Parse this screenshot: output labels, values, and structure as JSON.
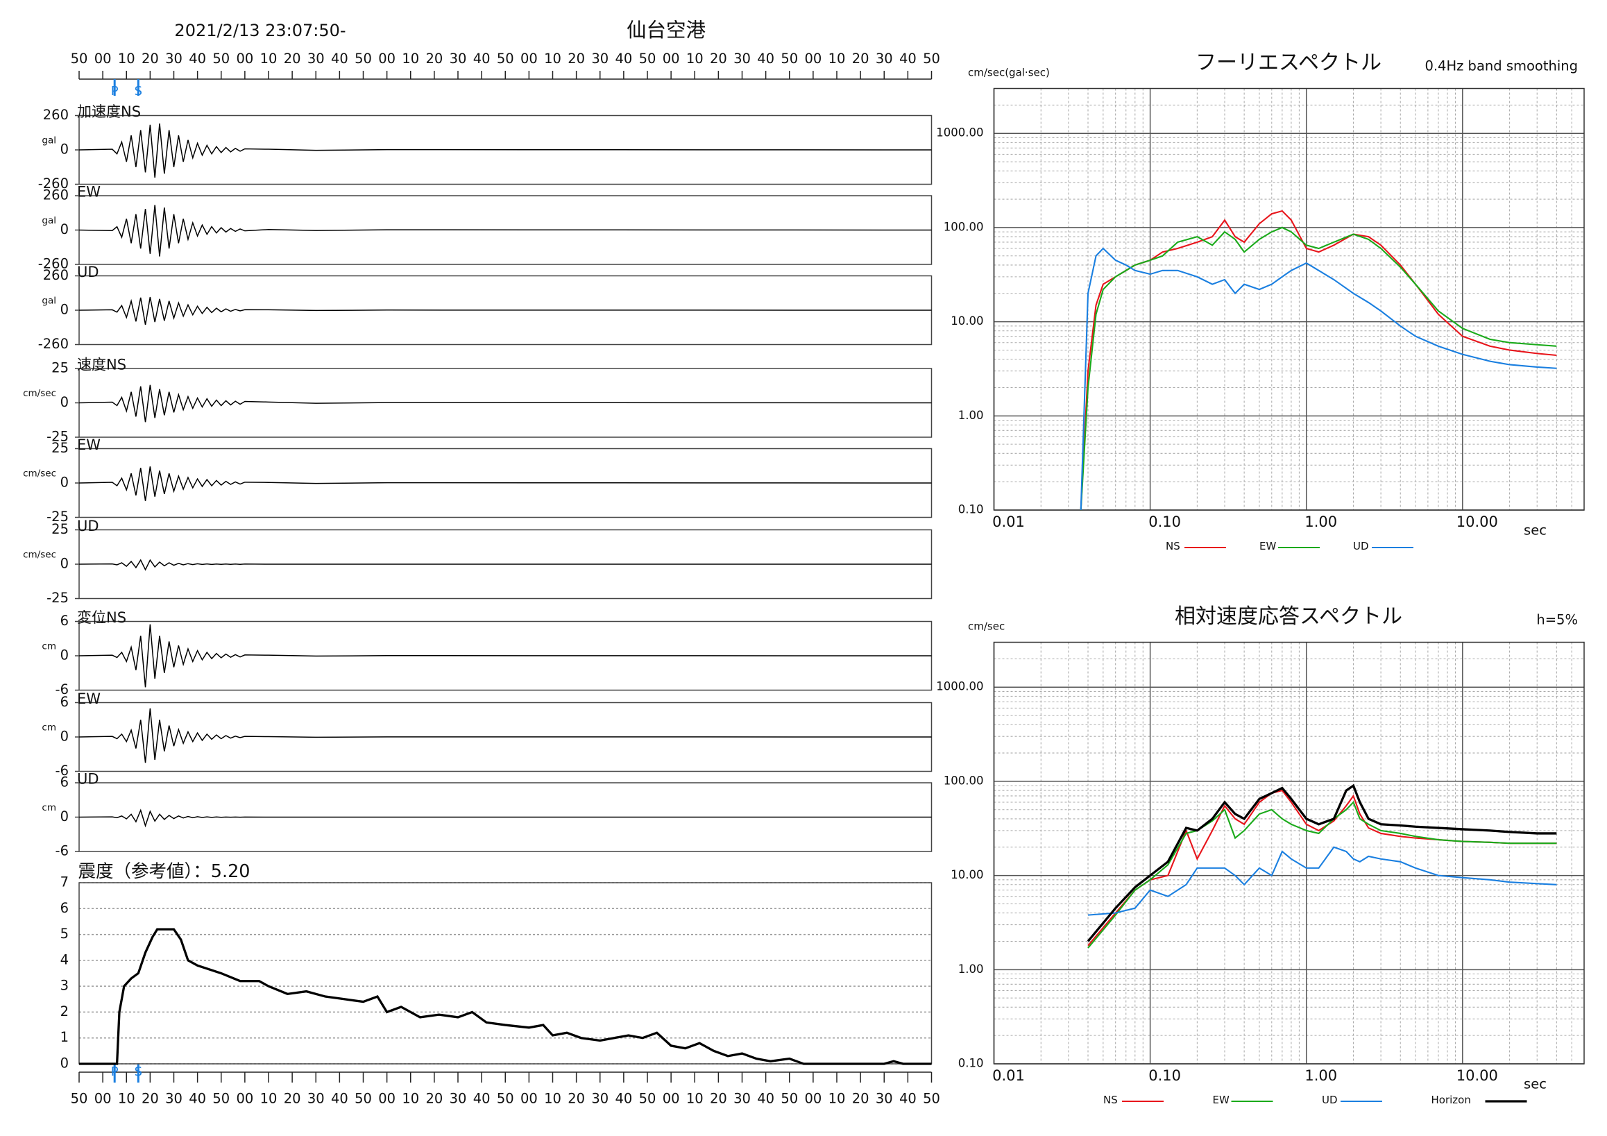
{
  "chart_data": [
    {
      "type": "waveform",
      "title": "仙台空港",
      "subtitle": "2021/2/13 23:07:50-",
      "xlim": [
        0,
        360
      ],
      "xticks": [
        {
          "value": 0,
          "label": "50"
        },
        {
          "value": 10,
          "label": "00"
        },
        {
          "value": 20,
          "label": "10"
        },
        {
          "value": 30,
          "label": "20"
        },
        {
          "value": 40,
          "label": "30"
        },
        {
          "value": 50,
          "label": "40"
        },
        {
          "value": 60,
          "label": "50"
        },
        {
          "value": 70,
          "label": "00"
        },
        {
          "value": 80,
          "label": "10"
        },
        {
          "value": 90,
          "label": "20"
        },
        {
          "value": 100,
          "label": "30"
        },
        {
          "value": 110,
          "label": "40"
        },
        {
          "value": 120,
          "label": "50"
        },
        {
          "value": 130,
          "label": "00"
        },
        {
          "value": 140,
          "label": "10"
        },
        {
          "value": 150,
          "label": "20"
        },
        {
          "value": 160,
          "label": "30"
        },
        {
          "value": 170,
          "label": "40"
        },
        {
          "value": 180,
          "label": "50"
        },
        {
          "value": 190,
          "label": "00"
        },
        {
          "value": 200,
          "label": "10"
        },
        {
          "value": 210,
          "label": "20"
        },
        {
          "value": 220,
          "label": "30"
        },
        {
          "value": 230,
          "label": "40"
        },
        {
          "value": 240,
          "label": "50"
        },
        {
          "value": 250,
          "label": "00"
        },
        {
          "value": 260,
          "label": "10"
        },
        {
          "value": 270,
          "label": "20"
        },
        {
          "value": 280,
          "label": "30"
        },
        {
          "value": 290,
          "label": "40"
        },
        {
          "value": 300,
          "label": "50"
        },
        {
          "value": 310,
          "label": "00"
        },
        {
          "value": 320,
          "label": "10"
        },
        {
          "value": 330,
          "label": "20"
        },
        {
          "value": 340,
          "label": "30"
        },
        {
          "value": 350,
          "label": "40"
        },
        {
          "value": 360,
          "label": "50"
        }
      ],
      "phases": [
        {
          "label": "P",
          "x": 15
        },
        {
          "label": "S",
          "x": 25
        }
      ],
      "x": [
        0,
        14,
        16,
        18,
        20,
        22,
        24,
        26,
        28,
        30,
        32,
        34,
        36,
        38,
        40,
        42,
        44,
        46,
        48,
        50,
        52,
        54,
        56,
        58,
        60,
        62,
        64,
        66,
        68,
        70,
        80,
        100,
        130,
        360
      ],
      "color": "#000000",
      "series": [
        {
          "name": "加速度NS",
          "unit": "gal",
          "ylim": [
            -260,
            260
          ],
          "yticks": [
            -260,
            0,
            260
          ],
          "values": [
            0,
            5,
            -30,
            60,
            -90,
            110,
            -130,
            150,
            -170,
            190,
            -210,
            200,
            -180,
            150,
            -130,
            110,
            -90,
            75,
            -60,
            50,
            -40,
            35,
            -30,
            25,
            -20,
            18,
            -15,
            12,
            -10,
            8,
            5,
            -3,
            2,
            0
          ]
        },
        {
          "name": "EW",
          "unit": "gal",
          "ylim": [
            -260,
            260
          ],
          "yticks": [
            -260,
            0,
            260
          ],
          "values": [
            0,
            -4,
            25,
            -55,
            85,
            -100,
            120,
            -140,
            160,
            -180,
            190,
            -200,
            170,
            -140,
            120,
            -100,
            85,
            -70,
            55,
            -45,
            38,
            -32,
            26,
            -22,
            18,
            -15,
            12,
            -10,
            8,
            -6,
            4,
            -3,
            2,
            0
          ]
        },
        {
          "name": "UD",
          "unit": "gal",
          "ylim": [
            -260,
            260
          ],
          "yticks": [
            -260,
            0,
            260
          ],
          "values": [
            0,
            3,
            -15,
            35,
            -55,
            70,
            -85,
            95,
            -110,
            100,
            -90,
            85,
            -80,
            70,
            -60,
            55,
            -45,
            40,
            -35,
            30,
            -25,
            22,
            -18,
            15,
            -12,
            10,
            -8,
            6,
            -5,
            4,
            3,
            -2,
            1,
            0
          ]
        },
        {
          "name": "速度NS",
          "unit": "cm/sec",
          "ylim": [
            -25,
            25
          ],
          "yticks": [
            -25,
            0,
            25
          ],
          "values": [
            0,
            0.5,
            -2,
            4,
            -6,
            8,
            -10,
            12,
            -14,
            13,
            -11,
            10,
            -9,
            8,
            -7,
            6,
            -5,
            4.5,
            -4,
            3.5,
            -3,
            3,
            -2.5,
            2,
            -2,
            1.5,
            -1.5,
            1.2,
            -1,
            1,
            0.6,
            -0.3,
            0.2,
            0
          ]
        },
        {
          "name": "EW",
          "unit": "cm/sec",
          "ylim": [
            -25,
            25
          ],
          "yticks": [
            -25,
            0,
            25
          ],
          "values": [
            0,
            0.5,
            -2,
            3.5,
            -5,
            7,
            -9,
            11,
            -13,
            12,
            -10,
            9,
            -8,
            7,
            -6,
            5,
            -4.5,
            4,
            -3.5,
            3,
            -2.5,
            2.5,
            -2,
            1.8,
            -1.5,
            1.2,
            -1,
            0.8,
            -0.8,
            0.6,
            0.4,
            -0.3,
            0.2,
            0
          ]
        },
        {
          "name": "UD",
          "unit": "cm/sec",
          "ylim": [
            -25,
            25
          ],
          "yticks": [
            -25,
            0,
            25
          ],
          "values": [
            0,
            0.2,
            -0.5,
            1,
            -1.5,
            2,
            -2.5,
            3,
            -4,
            3,
            -2,
            1.5,
            -1.2,
            1,
            -0.8,
            0.6,
            -0.5,
            0.4,
            -0.3,
            0.3,
            -0.2,
            0.2,
            -0.2,
            0.1,
            -0.1,
            0.1,
            -0.1,
            0.1,
            -0.1,
            0.1,
            0,
            0,
            0,
            0
          ]
        },
        {
          "name": "変位NS",
          "unit": "cm",
          "ylim": [
            -6,
            6
          ],
          "yticks": [
            -6,
            0,
            6
          ],
          "values": [
            0,
            0.1,
            -0.3,
            0.6,
            -1,
            1.5,
            -2.5,
            3.5,
            -5.5,
            5.5,
            -4,
            3.5,
            -3,
            2.5,
            -2,
            1.8,
            -1.5,
            1.2,
            -1,
            0.9,
            -0.7,
            0.6,
            -0.5,
            0.4,
            -0.35,
            0.3,
            -0.25,
            0.2,
            -0.2,
            0.15,
            0.1,
            -0.05,
            0.03,
            0
          ]
        },
        {
          "name": "EW",
          "unit": "cm",
          "ylim": [
            -6,
            6
          ],
          "yticks": [
            -6,
            0,
            6
          ],
          "values": [
            0,
            0.1,
            -0.3,
            0.5,
            -0.8,
            1.2,
            -2,
            3,
            -4.5,
            5,
            -4,
            3,
            -2.5,
            2,
            -1.6,
            1.3,
            -1.1,
            0.9,
            -0.8,
            0.7,
            -0.6,
            0.5,
            -0.4,
            0.35,
            -0.3,
            0.25,
            -0.2,
            0.15,
            -0.12,
            0.1,
            0.06,
            -0.04,
            0.02,
            0
          ]
        },
        {
          "name": "UD",
          "unit": "cm",
          "ylim": [
            -6,
            6
          ],
          "yticks": [
            -6,
            0,
            6
          ],
          "values": [
            0,
            0.05,
            -0.1,
            0.2,
            -0.3,
            0.5,
            -0.8,
            1.2,
            -1.5,
            1,
            -0.7,
            0.5,
            -0.4,
            0.3,
            -0.25,
            0.2,
            -0.15,
            0.12,
            -0.1,
            0.08,
            -0.06,
            0.05,
            -0.04,
            0.03,
            -0.03,
            0.02,
            -0.02,
            0.01,
            -0.01,
            0.01,
            0,
            0,
            0,
            0
          ]
        }
      ]
    },
    {
      "type": "step",
      "title": "震度（参考値）：5.20",
      "xlim": [
        0,
        360
      ],
      "ylim": [
        0,
        7
      ],
      "yticks": [
        0,
        1,
        2,
        3,
        4,
        5,
        6,
        7
      ],
      "grid": true,
      "color": "#000000",
      "x": [
        0,
        16,
        17,
        19,
        22,
        25,
        28,
        31,
        33,
        40,
        43,
        46,
        50,
        60,
        68,
        76,
        80,
        88,
        96,
        104,
        112,
        120,
        126,
        130,
        136,
        144,
        152,
        160,
        166,
        172,
        180,
        190,
        196,
        200,
        206,
        212,
        220,
        226,
        232,
        238,
        244,
        250,
        256,
        262,
        268,
        274,
        280,
        286,
        292,
        300,
        306,
        340,
        344,
        348,
        360
      ],
      "values": [
        0,
        0,
        2,
        3,
        3.3,
        3.5,
        4.3,
        4.9,
        5.2,
        5.2,
        4.8,
        4.0,
        3.8,
        3.5,
        3.2,
        3.2,
        3.0,
        2.7,
        2.8,
        2.6,
        2.5,
        2.4,
        2.6,
        2.0,
        2.2,
        1.8,
        1.9,
        1.8,
        2.0,
        1.6,
        1.5,
        1.4,
        1.5,
        1.1,
        1.2,
        1.0,
        0.9,
        1.0,
        1.1,
        1.0,
        1.2,
        0.7,
        0.6,
        0.8,
        0.5,
        0.3,
        0.4,
        0.2,
        0.1,
        0.2,
        0,
        0,
        0.1,
        0,
        0
      ]
    },
    {
      "type": "spectrum",
      "title": "フーリエスペクトル",
      "subtitle": "0.4Hz band smoothing",
      "y_label": "cm/sec(gal·sec)",
      "x_label": "sec",
      "xscale": "log",
      "yscale": "log",
      "grid": true,
      "minor_grid": true,
      "xlim": [
        0.01,
        60
      ],
      "ylim": [
        0.1,
        3000
      ],
      "xticks": [
        {
          "value": 0.01,
          "label": "0.01"
        },
        {
          "value": 0.1,
          "label": "0.10"
        },
        {
          "value": 1,
          "label": "1.00"
        },
        {
          "value": 10,
          "label": "10.00"
        }
      ],
      "yticks": [
        {
          "value": 0.1,
          "label": "0.10"
        },
        {
          "value": 1,
          "label": "1.00"
        },
        {
          "value": 10,
          "label": "10.00"
        },
        {
          "value": 100,
          "label": "100.00"
        },
        {
          "value": 1000,
          "label": "1000.00"
        }
      ],
      "x": [
        0.036,
        0.04,
        0.045,
        0.05,
        0.06,
        0.07,
        0.08,
        0.1,
        0.12,
        0.15,
        0.2,
        0.25,
        0.3,
        0.35,
        0.4,
        0.5,
        0.6,
        0.7,
        0.8,
        1.0,
        1.2,
        1.5,
        2.0,
        2.5,
        3,
        4,
        5,
        7,
        10,
        15,
        20,
        30,
        40
      ],
      "series": [
        {
          "name": "NS",
          "color": "#e8151b",
          "values": [
            0.1,
            3,
            15,
            25,
            30,
            35,
            40,
            45,
            55,
            60,
            70,
            80,
            120,
            80,
            70,
            110,
            140,
            150,
            120,
            60,
            55,
            65,
            85,
            80,
            65,
            40,
            25,
            12,
            7,
            5.5,
            5,
            4.6,
            4.4
          ]
        },
        {
          "name": "EW",
          "color": "#1aaa1a",
          "values": [
            0.1,
            2,
            12,
            22,
            30,
            35,
            40,
            45,
            50,
            70,
            80,
            65,
            90,
            75,
            55,
            75,
            90,
            100,
            90,
            65,
            60,
            70,
            85,
            75,
            60,
            38,
            25,
            13,
            8.5,
            6.5,
            6,
            5.7,
            5.5
          ]
        },
        {
          "name": "UD",
          "color": "#1a7fe0",
          "values": [
            0.1,
            20,
            50,
            60,
            45,
            40,
            35,
            32,
            35,
            35,
            30,
            25,
            28,
            20,
            25,
            22,
            25,
            30,
            35,
            42,
            35,
            28,
            20,
            16,
            13,
            9,
            7,
            5.5,
            4.5,
            3.8,
            3.5,
            3.3,
            3.2
          ]
        }
      ]
    },
    {
      "type": "spectrum",
      "title": "相対速度応答スペクトル",
      "subtitle": "h=5%",
      "y_label": "cm/sec",
      "x_label": "sec",
      "xscale": "log",
      "yscale": "log",
      "grid": true,
      "minor_grid": true,
      "xlim": [
        0.01,
        60
      ],
      "ylim": [
        0.1,
        3000
      ],
      "xticks": [
        {
          "value": 0.01,
          "label": "0.01"
        },
        {
          "value": 0.1,
          "label": "0.10"
        },
        {
          "value": 1,
          "label": "1.00"
        },
        {
          "value": 10,
          "label": "10.00"
        }
      ],
      "yticks": [
        {
          "value": 0.1,
          "label": "0.10"
        },
        {
          "value": 1,
          "label": "1.00"
        },
        {
          "value": 10,
          "label": "10.00"
        },
        {
          "value": 100,
          "label": "100.00"
        },
        {
          "value": 1000,
          "label": "1000.00"
        }
      ],
      "x": [
        0.04,
        0.06,
        0.08,
        0.1,
        0.13,
        0.17,
        0.2,
        0.25,
        0.3,
        0.35,
        0.4,
        0.5,
        0.6,
        0.7,
        0.8,
        1.0,
        1.2,
        1.5,
        1.8,
        2.0,
        2.2,
        2.5,
        3,
        4,
        5,
        7,
        10,
        15,
        20,
        30,
        40
      ],
      "series": [
        {
          "name": "NS",
          "color": "#e8151b",
          "values": [
            1.8,
            4,
            7,
            9,
            10,
            30,
            15,
            30,
            55,
            40,
            35,
            60,
            75,
            80,
            60,
            35,
            30,
            38,
            55,
            70,
            45,
            32,
            28,
            26,
            25,
            24,
            23,
            22.5,
            22,
            22,
            22
          ]
        },
        {
          "name": "EW",
          "color": "#1aaa1a",
          "values": [
            1.7,
            3.8,
            7,
            9,
            13,
            28,
            30,
            38,
            50,
            25,
            30,
            45,
            50,
            40,
            35,
            30,
            28,
            40,
            50,
            60,
            40,
            35,
            30,
            28,
            26,
            24,
            23,
            22.5,
            22,
            22,
            22
          ]
        },
        {
          "name": "UD",
          "color": "#1a7fe0",
          "values": [
            3.8,
            4,
            4.5,
            7,
            6,
            8,
            12,
            12,
            12,
            10,
            8,
            12,
            10,
            18,
            15,
            12,
            12,
            20,
            18,
            15,
            14,
            16,
            15,
            14,
            12,
            10,
            9.5,
            9,
            8.5,
            8.2,
            8
          ]
        },
        {
          "name": "Horizon",
          "color": "#000000",
          "values": [
            2,
            4.5,
            7.5,
            10,
            14,
            32,
            30,
            40,
            60,
            45,
            40,
            65,
            75,
            85,
            65,
            40,
            35,
            40,
            80,
            90,
            60,
            40,
            35,
            34,
            33,
            32,
            31,
            30,
            29,
            28,
            28
          ]
        }
      ]
    }
  ]
}
